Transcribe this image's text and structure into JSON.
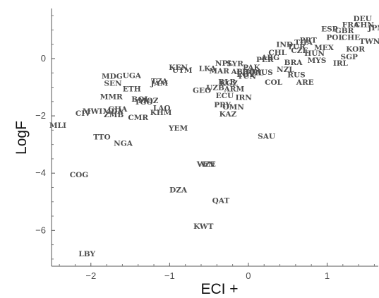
{
  "chart_data": {
    "type": "scatter",
    "title": "",
    "xlabel": "ECI +",
    "ylabel": "LogF",
    "xlim": [
      -2.5,
      1.65
    ],
    "ylim": [
      -7.25,
      1.75
    ],
    "xticks": [
      -2,
      -1,
      0,
      1
    ],
    "yticks": [
      0,
      -2,
      -4,
      -6
    ],
    "xtick_labels": [
      "−2",
      "−1",
      "0",
      "1"
    ],
    "ytick_labels": [
      "0",
      "−2",
      "−4",
      "−6"
    ],
    "grid": false,
    "points": [
      {
        "label": "DEU",
        "x": 1.45,
        "y": 1.4
      },
      {
        "label": "FRA",
        "x": 1.3,
        "y": 1.2
      },
      {
        "label": "JPN",
        "x": 1.62,
        "y": 1.08
      },
      {
        "label": "CHN",
        "x": 1.47,
        "y": 1.19
      },
      {
        "label": "ESP",
        "x": 1.03,
        "y": 1.05
      },
      {
        "label": "GBR",
        "x": 1.22,
        "y": 0.98
      },
      {
        "label": "POL",
        "x": 1.1,
        "y": 0.75
      },
      {
        "label": "CHE",
        "x": 1.3,
        "y": 0.75
      },
      {
        "label": "TWN",
        "x": 1.54,
        "y": 0.62
      },
      {
        "label": "KOR",
        "x": 1.36,
        "y": 0.35
      },
      {
        "label": "SGP",
        "x": 1.28,
        "y": 0.07
      },
      {
        "label": "THA",
        "x": 0.7,
        "y": 0.58
      },
      {
        "label": "IND",
        "x": 0.46,
        "y": 0.5
      },
      {
        "label": "PRT",
        "x": 0.76,
        "y": 0.65
      },
      {
        "label": "TUR",
        "x": 0.61,
        "y": 0.43
      },
      {
        "label": "CZE",
        "x": 0.65,
        "y": 0.3
      },
      {
        "label": "MEX",
        "x": 0.96,
        "y": 0.4
      },
      {
        "label": "MYS",
        "x": 0.87,
        "y": -0.05
      },
      {
        "label": "IRL",
        "x": 1.17,
        "y": -0.15
      },
      {
        "label": "HUN",
        "x": 0.84,
        "y": 0.2
      },
      {
        "label": "ARG",
        "x": 0.28,
        "y": 0.05
      },
      {
        "label": "BRA",
        "x": 0.57,
        "y": -0.12
      },
      {
        "label": "RUS",
        "x": 0.61,
        "y": -0.55
      },
      {
        "label": "ARE",
        "x": 0.72,
        "y": -0.82
      },
      {
        "label": "COL",
        "x": 0.32,
        "y": -0.82
      },
      {
        "label": "PER",
        "x": 0.21,
        "y": -0.03
      },
      {
        "label": "CHL",
        "x": 0.37,
        "y": 0.22
      },
      {
        "label": "AUS",
        "x": 0.2,
        "y": -0.47
      },
      {
        "label": "NZL",
        "x": 0.47,
        "y": -0.37
      },
      {
        "label": "KEN",
        "x": -0.89,
        "y": -0.3
      },
      {
        "label": "UTM",
        "x": -0.84,
        "y": -0.4
      },
      {
        "label": "LKA",
        "x": -0.52,
        "y": -0.33
      },
      {
        "label": "NPL",
        "x": -0.31,
        "y": -0.15
      },
      {
        "label": "SYR",
        "x": -0.17,
        "y": -0.16
      },
      {
        "label": "MAR",
        "x": -0.37,
        "y": -0.42
      },
      {
        "label": "PAK",
        "x": 0.04,
        "y": -0.3
      },
      {
        "label": "BGD",
        "x": -0.03,
        "y": -0.44
      },
      {
        "label": "EGY",
        "x": -0.04,
        "y": -0.54
      },
      {
        "label": "PHL",
        "x": 0.08,
        "y": -0.48
      },
      {
        "label": "ALB",
        "x": -0.11,
        "y": -0.45
      },
      {
        "label": "TUN",
        "x": -0.02,
        "y": -0.6
      },
      {
        "label": "KGZ",
        "x": -0.25,
        "y": -0.85
      },
      {
        "label": "GEO",
        "x": -0.59,
        "y": -1.1
      },
      {
        "label": "ECU",
        "x": -0.3,
        "y": -1.28
      },
      {
        "label": "UZB",
        "x": -0.42,
        "y": -1.0
      },
      {
        "label": "BLR",
        "x": -0.27,
        "y": -0.8
      },
      {
        "label": "ARM",
        "x": -0.18,
        "y": -1.05
      },
      {
        "label": "IRN",
        "x": -0.06,
        "y": -1.35
      },
      {
        "label": "PRY",
        "x": -0.33,
        "y": -1.6
      },
      {
        "label": "OMN",
        "x": -0.19,
        "y": -1.68
      },
      {
        "label": "KAZ",
        "x": -0.26,
        "y": -1.93
      },
      {
        "label": "MDG",
        "x": -1.73,
        "y": -0.6
      },
      {
        "label": "UGA",
        "x": -1.48,
        "y": -0.58
      },
      {
        "label": "SEN",
        "x": -1.72,
        "y": -0.85
      },
      {
        "label": "TZA",
        "x": -1.13,
        "y": -0.78
      },
      {
        "label": "JAM",
        "x": -1.13,
        "y": -0.85
      },
      {
        "label": "ETH",
        "x": -1.48,
        "y": -1.05
      },
      {
        "label": "MMR",
        "x": -1.74,
        "y": -1.32
      },
      {
        "label": "BOL",
        "x": -1.37,
        "y": -1.4
      },
      {
        "label": "TGO",
        "x": -1.33,
        "y": -1.5
      },
      {
        "label": "MOZ",
        "x": -1.27,
        "y": -1.45
      },
      {
        "label": "LAO",
        "x": -1.1,
        "y": -1.72
      },
      {
        "label": "KHM",
        "x": -1.11,
        "y": -1.88
      },
      {
        "label": "GHA",
        "x": -1.66,
        "y": -1.75
      },
      {
        "label": "MWI",
        "x": -1.98,
        "y": -1.82
      },
      {
        "label": "MDA",
        "x": -1.72,
        "y": -1.82
      },
      {
        "label": "ZMB",
        "x": -1.71,
        "y": -1.95
      },
      {
        "label": "CMR",
        "x": -1.4,
        "y": -2.05
      },
      {
        "label": "CIV",
        "x": -2.1,
        "y": -1.9
      },
      {
        "label": "MLI",
        "x": -2.42,
        "y": -2.32
      },
      {
        "label": "TTO",
        "x": -1.86,
        "y": -2.72
      },
      {
        "label": "NGA",
        "x": -1.59,
        "y": -2.95
      },
      {
        "label": "YEM",
        "x": -0.89,
        "y": -2.42
      },
      {
        "label": "SAU",
        "x": 0.23,
        "y": -2.7
      },
      {
        "label": "VEN",
        "x": -0.54,
        "y": -3.68
      },
      {
        "label": "AZE",
        "x": -0.52,
        "y": -3.68
      },
      {
        "label": "COG",
        "x": -2.15,
        "y": -4.05
      },
      {
        "label": "DZA",
        "x": -0.89,
        "y": -4.57
      },
      {
        "label": "QAT",
        "x": -0.35,
        "y": -4.95
      },
      {
        "label": "KWT",
        "x": -0.57,
        "y": -5.85
      },
      {
        "label": "LBY",
        "x": -2.05,
        "y": -6.8
      }
    ]
  }
}
